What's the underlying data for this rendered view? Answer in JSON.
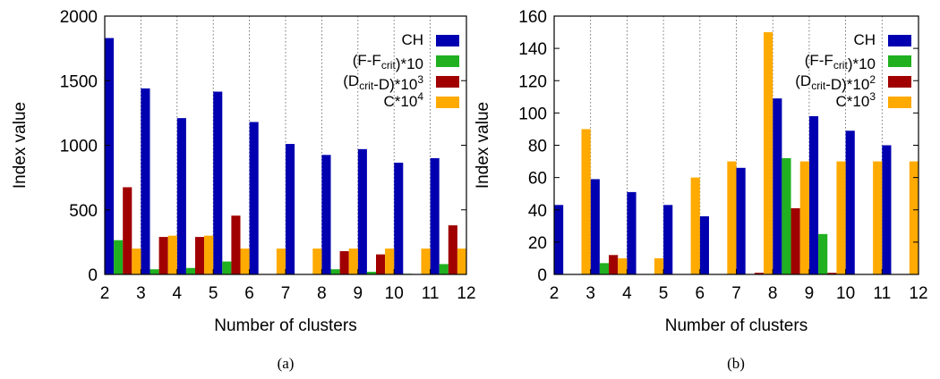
{
  "chart_data": [
    {
      "type": "bar",
      "caption": "(a)",
      "xlabel": "Number of clusters",
      "ylabel": "Index value",
      "ylim": [
        0,
        2000
      ],
      "yticks": [
        0,
        500,
        1000,
        1500,
        2000
      ],
      "categories": [
        "2",
        "3",
        "4",
        "5",
        "6",
        "7",
        "8",
        "9",
        "10",
        "11",
        "12"
      ],
      "grid": "vertical dotted",
      "legend_position": "top-right",
      "series": [
        {
          "name": "CH",
          "label_main": "CH",
          "color": "#0000b0",
          "values": [
            1830,
            1440,
            1210,
            1415,
            1180,
            1010,
            925,
            970,
            865,
            900,
            null
          ]
        },
        {
          "name": "(F-Fcrit)*10",
          "label_main": "(F-F",
          "label_sub": "crit",
          "label_tail": ")*10",
          "color": "#20b020",
          "values": [
            265,
            40,
            50,
            100,
            0,
            0,
            40,
            20,
            5,
            80,
            null
          ]
        },
        {
          "name": "(Dcrit-D)*10^3",
          "label_main": "(D",
          "label_sub": "crit",
          "label_tail": "-D)*10",
          "label_sup": "3",
          "color": "#a00000",
          "values": [
            675,
            290,
            290,
            455,
            0,
            0,
            180,
            155,
            0,
            380,
            null
          ]
        },
        {
          "name": "C*10^4",
          "label_main": "C*10",
          "label_sup": "4",
          "color": "#ffaa00",
          "values": [
            200,
            300,
            300,
            200,
            200,
            200,
            200,
            200,
            200,
            200,
            null
          ]
        }
      ]
    },
    {
      "type": "bar",
      "caption": "(b)",
      "xlabel": "Number of clusters",
      "ylabel": "Index value",
      "ylim": [
        0,
        160
      ],
      "yticks": [
        0,
        20,
        40,
        60,
        80,
        100,
        120,
        140,
        160
      ],
      "categories": [
        "2",
        "3",
        "4",
        "5",
        "6",
        "7",
        "8",
        "9",
        "10",
        "11",
        "12"
      ],
      "grid": "vertical dotted",
      "legend_position": "top-right",
      "series": [
        {
          "name": "CH",
          "label_main": "CH",
          "color": "#0000b0",
          "values": [
            43,
            59,
            51,
            43,
            36,
            66,
            109,
            98,
            89,
            80,
            null
          ]
        },
        {
          "name": "(F-Fcrit)*10",
          "label_main": "(F-F",
          "label_sub": "crit",
          "label_tail": ")*10",
          "color": "#20b020",
          "values": [
            0,
            7,
            0,
            0,
            0,
            0,
            72,
            25,
            0,
            0,
            null
          ]
        },
        {
          "name": "(Dcrit-D)*10^2",
          "label_main": "(D",
          "label_sub": "crit",
          "label_tail": "-D)*10",
          "label_sup": "2",
          "color": "#a00000",
          "values": [
            0,
            12,
            0,
            0,
            0,
            1,
            41,
            1,
            0,
            0,
            null
          ]
        },
        {
          "name": "C*10^3",
          "label_main": "C*10",
          "label_sup": "3",
          "color": "#ffaa00",
          "values": [
            90,
            10,
            10,
            60,
            70,
            150,
            70,
            70,
            70,
            70,
            null
          ]
        }
      ]
    }
  ]
}
